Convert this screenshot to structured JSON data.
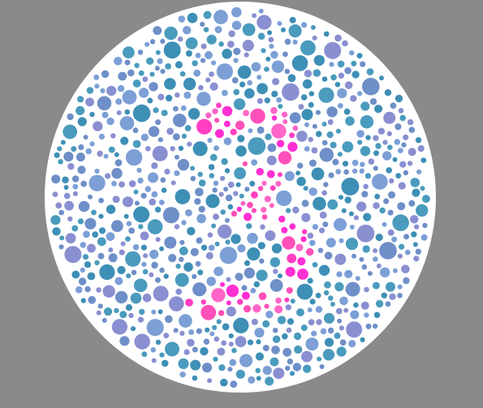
{
  "image": {
    "type": "color-vision-test-plate",
    "depicted_numeral": "3",
    "colors": {
      "background": "#8a8a8a",
      "plate": "#ffffff",
      "dot_palette": [
        "#4a9bbd",
        "#6f8fc8",
        "#8a8fd1",
        "#3e8fb6",
        "#7c9fd6"
      ],
      "numeral_palette": [
        "#ff2fd3",
        "#ff4fb8",
        "#ff66c8",
        "#ff3ec2"
      ]
    }
  }
}
